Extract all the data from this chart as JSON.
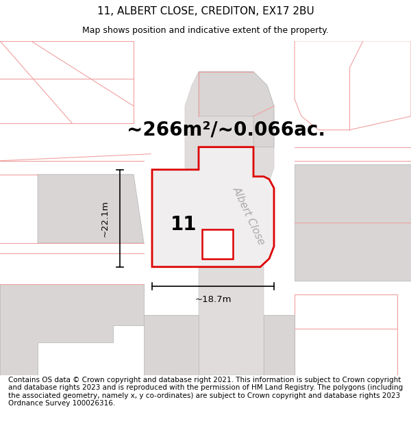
{
  "title": "11, ALBERT CLOSE, CREDITON, EX17 2BU",
  "subtitle": "Map shows position and indicative extent of the property.",
  "area_label": "~266m²/~0.066ac.",
  "width_label": "~18.7m",
  "height_label": "~22.1m",
  "number_label": "11",
  "road_label": "Albert Close",
  "footer": "Contains OS data © Crown copyright and database right 2021. This information is subject to Crown copyright and database rights 2023 and is reproduced with the permission of HM Land Registry. The polygons (including the associated geometry, namely x, y co-ordinates) are subject to Crown copyright and database rights 2023 Ordnance Survey 100026316.",
  "bg_color": "#f5f3f2",
  "title_fontsize": 11,
  "subtitle_fontsize": 9,
  "area_fontsize": 20,
  "number_fontsize": 20,
  "road_fontsize": 11,
  "footer_fontsize": 7.5,
  "red_color": "#dd0000",
  "light_red": "#f0a0a0",
  "mid_gray": "#aaaaaa",
  "building_fill": "#d8d5d4",
  "white": "#ffffff"
}
